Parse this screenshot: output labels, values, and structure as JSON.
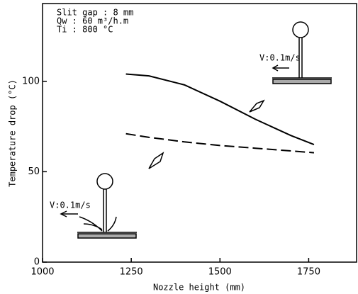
{
  "chart_data": {
    "type": "line",
    "x_label": "Nozzle height  (mm)",
    "y_label": "Temperature drop  (°C)",
    "x": [
      1235,
      1300,
      1400,
      1500,
      1600,
      1700,
      1765
    ],
    "series": [
      {
        "color": "#000000",
        "linestyle": "solid",
        "values": [
          104,
          103,
          98,
          89,
          79,
          70,
          65
        ]
      },
      {
        "color": "#000000",
        "linestyle": "dashed",
        "values": [
          71,
          69,
          66.5,
          64.5,
          63,
          61.5,
          60.5
        ]
      }
    ],
    "xlim": [
      1000,
      1885
    ],
    "xticks": [
      1000,
      1250,
      1500,
      1750
    ],
    "ylim": [
      0,
      143
    ],
    "yticks": [
      0,
      50,
      100
    ],
    "annotations": [
      "Slit gap : 8 mm",
      "Qw       : 60 m³/h.m",
      "Ti       : 800 °C",
      "V:0.1m/s",
      "V:0.1m/s"
    ]
  }
}
